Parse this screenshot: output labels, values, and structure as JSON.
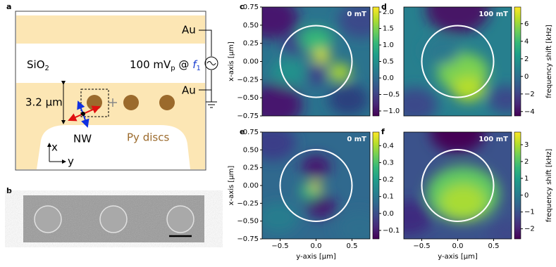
{
  "diagram": {
    "label_a": "a",
    "au_top": "Au",
    "sio2": "SiO",
    "sio2_sub": "2",
    "source": "100 mV",
    "source_sub": "p",
    "source_at": " @ ",
    "freq": "f",
    "freq_sub": "1",
    "au_bottom": "Au",
    "thickness": "3.2 µm",
    "nw": "NW",
    "discs": "Py discs",
    "axis_x": "x",
    "axis_y": "y",
    "label_b": "b"
  },
  "chart_data": [
    {
      "type": "heatmap",
      "panel": "c",
      "field": "0 mT",
      "ylabel": "x-axis [μm]",
      "xlim": [
        -0.75,
        0.75
      ],
      "ylim": [
        -0.75,
        0.75
      ],
      "yticks": [
        {
          "value": -0.75,
          "label": "−0.75"
        },
        {
          "value": -0.5,
          "label": "−0.50"
        },
        {
          "value": -0.25,
          "label": "−0.25"
        },
        {
          "value": 0,
          "label": "0.00"
        },
        {
          "value": 0.25,
          "label": "0.25"
        },
        {
          "value": 0.5,
          "label": "0.50"
        },
        0.75
      ],
      "clim": [
        -1.15,
        2.15
      ],
      "cticks": [
        {
          "value": -1,
          "label": "−1.0"
        },
        {
          "value": -0.5,
          "label": "−0.5"
        },
        {
          "value": 0,
          "label": "0.0"
        },
        0.5,
        {
          "value": 1,
          "label": "1.0"
        },
        1.5,
        {
          "value": 2,
          "label": "2.0"
        }
      ]
    },
    {
      "type": "heatmap",
      "panel": "d",
      "field": "100 mT",
      "colorbar_label": "frequency shift [kHz]",
      "xlim": [
        -0.75,
        0.75
      ],
      "ylim": [
        -0.75,
        0.75
      ],
      "clim": [
        -4.5,
        7.9
      ],
      "cticks": [
        {
          "value": -4,
          "label": "−4"
        },
        {
          "value": -2,
          "label": "−2"
        },
        0,
        2,
        4,
        6
      ]
    },
    {
      "type": "heatmap",
      "panel": "e",
      "field": "0 mT",
      "xlabel": "y-axis [μm]",
      "ylabel": "x-axis [μm]",
      "xlim": [
        -0.75,
        0.75
      ],
      "ylim": [
        -0.75,
        0.75
      ],
      "xticks": [
        {
          "value": -0.5,
          "label": "−0.5"
        },
        {
          "value": 0,
          "label": "0.0"
        },
        0.5
      ],
      "yticks": [
        {
          "value": -0.75,
          "label": "−0.75"
        },
        {
          "value": -0.5,
          "label": "−0.50"
        },
        {
          "value": -0.25,
          "label": "−0.25"
        },
        {
          "value": 0,
          "label": "0.00"
        },
        {
          "value": 0.25,
          "label": "0.25"
        },
        {
          "value": 0.5,
          "label": "0.50"
        },
        0.75
      ],
      "clim": [
        -0.15,
        0.48
      ],
      "cticks": [
        {
          "value": -0.1,
          "label": "−0.1"
        },
        {
          "value": 0,
          "label": "0.0"
        },
        0.1,
        0.2,
        0.3,
        0.4
      ]
    },
    {
      "type": "heatmap",
      "panel": "f",
      "field": "100 mT",
      "xlabel": "y-axis [μm]",
      "colorbar_label": "frequency shift [kHz]",
      "xlim": [
        -0.75,
        0.75
      ],
      "ylim": [
        -0.75,
        0.75
      ],
      "xticks": [
        {
          "value": -0.5,
          "label": "−0.5"
        },
        {
          "value": 0,
          "label": "0.0"
        },
        0.5
      ],
      "clim": [
        -2.6,
        3.75
      ],
      "cticks": [
        {
          "value": -2,
          "label": "−2"
        },
        {
          "value": -1,
          "label": "−1"
        },
        0,
        1,
        2,
        3
      ]
    }
  ]
}
